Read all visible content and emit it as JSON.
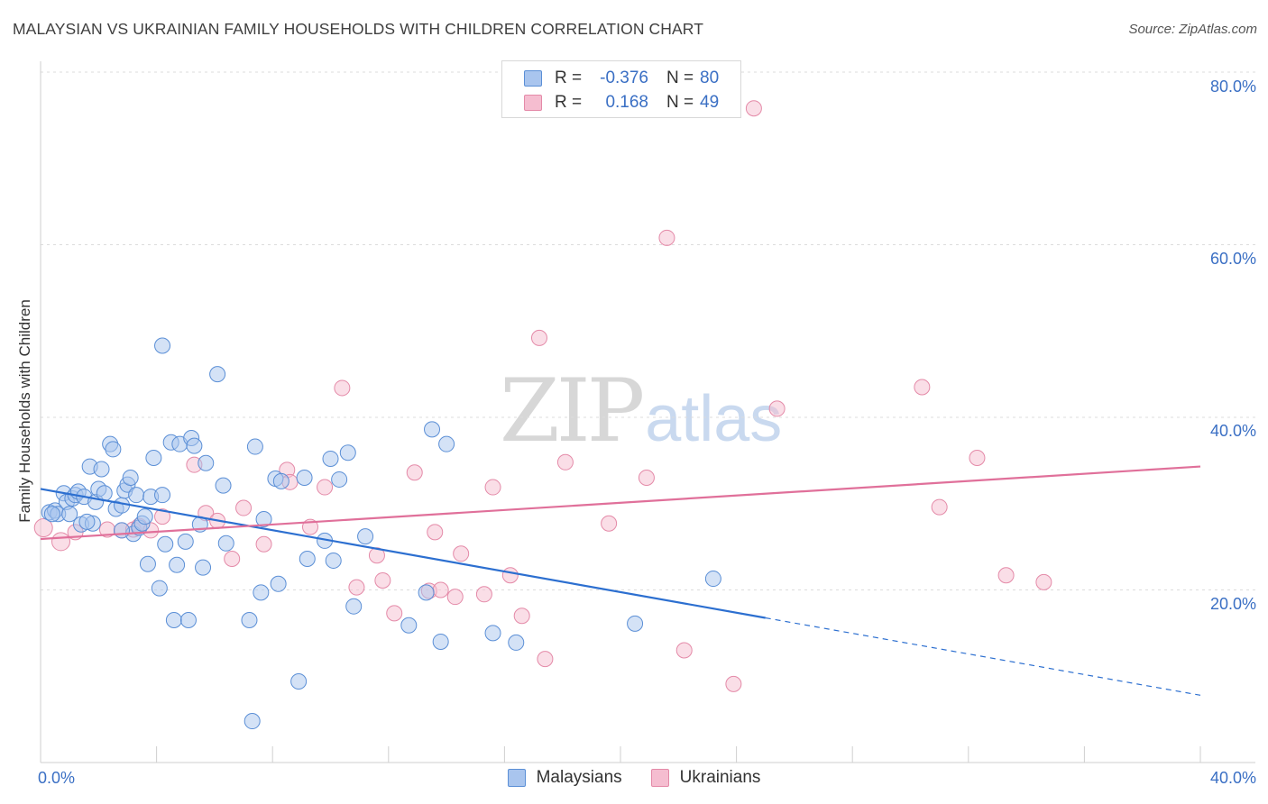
{
  "header": {
    "title": "MALAYSIAN VS UKRAINIAN FAMILY HOUSEHOLDS WITH CHILDREN CORRELATION CHART",
    "source": "Source: ZipAtlas.com"
  },
  "watermark": {
    "part1": "ZIP",
    "part2": "atlas"
  },
  "legend": {
    "rows": [
      {
        "r_label": "R =",
        "r_value": "-0.376",
        "n_label": "N =",
        "n_value": "80"
      },
      {
        "r_label": "R =",
        "r_value": "0.168",
        "n_label": "N =",
        "n_value": "49"
      }
    ]
  },
  "bottom_legend": {
    "series0": "Malaysians",
    "series1": "Ukrainians"
  },
  "axes": {
    "ylabel": "Family Households with Children",
    "x_min_label": "0.0%",
    "x_max_label": "40.0%",
    "y_ticks": [
      "80.0%",
      "60.0%",
      "40.0%",
      "20.0%"
    ]
  },
  "colors": {
    "blue_fill": "#a9c5ee",
    "blue_stroke": "#5b8fd6",
    "blue_line": "#2c6fd0",
    "pink_fill": "#f5bdd0",
    "pink_stroke": "#e48aa8",
    "pink_line": "#e0709a"
  },
  "chart_data": {
    "type": "scatter",
    "xlabel": "",
    "ylabel": "Family Households with Children",
    "xlim": [
      0,
      40
    ],
    "ylim": [
      0,
      80
    ],
    "grid": true,
    "series": [
      {
        "name": "Malaysians",
        "points": [
          [
            0.3,
            29.0
          ],
          [
            0.5,
            29.2
          ],
          [
            0.6,
            28.8
          ],
          [
            0.8,
            31.2
          ],
          [
            0.9,
            30.2
          ],
          [
            1.0,
            28.8
          ],
          [
            1.1,
            30.6
          ],
          [
            1.2,
            31.0
          ],
          [
            1.3,
            31.4
          ],
          [
            1.4,
            27.6
          ],
          [
            1.5,
            30.8
          ],
          [
            1.7,
            34.3
          ],
          [
            1.8,
            27.7
          ],
          [
            1.9,
            30.2
          ],
          [
            2.0,
            31.7
          ],
          [
            2.1,
            34.0
          ],
          [
            2.2,
            31.2
          ],
          [
            2.4,
            36.9
          ],
          [
            2.5,
            36.3
          ],
          [
            2.6,
            29.4
          ],
          [
            2.8,
            29.8
          ],
          [
            2.9,
            31.5
          ],
          [
            3.0,
            32.2
          ],
          [
            3.1,
            33.0
          ],
          [
            3.2,
            26.5
          ],
          [
            3.3,
            31.0
          ],
          [
            3.4,
            27.2
          ],
          [
            3.5,
            27.7
          ],
          [
            3.6,
            28.5
          ],
          [
            3.7,
            23.0
          ],
          [
            3.8,
            30.8
          ],
          [
            3.9,
            35.3
          ],
          [
            4.1,
            20.2
          ],
          [
            4.2,
            31.0
          ],
          [
            4.3,
            25.3
          ],
          [
            4.5,
            37.1
          ],
          [
            4.6,
            16.5
          ],
          [
            4.7,
            22.9
          ],
          [
            4.8,
            36.9
          ],
          [
            5.0,
            25.6
          ],
          [
            5.1,
            16.5
          ],
          [
            5.2,
            37.6
          ],
          [
            5.3,
            36.7
          ],
          [
            5.5,
            27.6
          ],
          [
            5.6,
            22.6
          ],
          [
            5.7,
            34.7
          ],
          [
            4.2,
            48.3
          ],
          [
            6.1,
            45.0
          ],
          [
            6.3,
            32.1
          ],
          [
            6.4,
            25.4
          ],
          [
            7.2,
            16.5
          ],
          [
            7.4,
            36.6
          ],
          [
            7.6,
            19.7
          ],
          [
            7.7,
            28.2
          ],
          [
            8.1,
            32.9
          ],
          [
            8.2,
            20.7
          ],
          [
            8.3,
            32.6
          ],
          [
            8.9,
            9.4
          ],
          [
            9.1,
            33.0
          ],
          [
            9.2,
            23.6
          ],
          [
            9.8,
            25.7
          ],
          [
            10.0,
            35.2
          ],
          [
            10.1,
            23.4
          ],
          [
            10.3,
            32.8
          ],
          [
            10.6,
            35.9
          ],
          [
            10.8,
            18.1
          ],
          [
            11.2,
            26.2
          ],
          [
            7.3,
            4.8
          ],
          [
            12.7,
            15.9
          ],
          [
            13.3,
            19.7
          ],
          [
            13.5,
            38.6
          ],
          [
            14.0,
            36.9
          ],
          [
            13.8,
            14.0
          ],
          [
            15.6,
            15.0
          ],
          [
            16.4,
            13.9
          ],
          [
            20.5,
            16.1
          ],
          [
            23.2,
            21.3
          ],
          [
            2.8,
            26.9
          ],
          [
            0.4,
            28.8
          ],
          [
            1.6,
            27.9
          ]
        ]
      },
      {
        "name": "Ukrainians",
        "points": [
          [
            0.1,
            27.2
          ],
          [
            0.7,
            25.6
          ],
          [
            1.2,
            26.7
          ],
          [
            2.3,
            27.0
          ],
          [
            2.8,
            26.9
          ],
          [
            3.2,
            27.0
          ],
          [
            3.4,
            27.4
          ],
          [
            3.8,
            26.9
          ],
          [
            4.2,
            28.5
          ],
          [
            5.3,
            34.5
          ],
          [
            5.7,
            28.9
          ],
          [
            6.1,
            28.0
          ],
          [
            6.6,
            23.6
          ],
          [
            7.0,
            29.5
          ],
          [
            7.7,
            25.3
          ],
          [
            8.5,
            33.9
          ],
          [
            8.6,
            32.5
          ],
          [
            9.3,
            27.3
          ],
          [
            9.8,
            31.9
          ],
          [
            10.4,
            43.4
          ],
          [
            10.9,
            20.3
          ],
          [
            11.6,
            24.0
          ],
          [
            11.8,
            21.1
          ],
          [
            12.2,
            17.3
          ],
          [
            12.9,
            33.6
          ],
          [
            13.4,
            19.9
          ],
          [
            13.6,
            26.7
          ],
          [
            13.8,
            20.0
          ],
          [
            14.3,
            19.2
          ],
          [
            14.5,
            24.2
          ],
          [
            15.3,
            19.5
          ],
          [
            15.6,
            31.9
          ],
          [
            16.2,
            21.7
          ],
          [
            16.6,
            17.0
          ],
          [
            17.2,
            49.2
          ],
          [
            17.4,
            12.0
          ],
          [
            18.1,
            34.8
          ],
          [
            19.6,
            27.7
          ],
          [
            20.9,
            33.0
          ],
          [
            21.6,
            60.8
          ],
          [
            22.2,
            13.0
          ],
          [
            23.9,
            9.1
          ],
          [
            24.6,
            75.8
          ],
          [
            25.4,
            41.0
          ],
          [
            30.4,
            43.5
          ],
          [
            31.0,
            29.6
          ],
          [
            32.3,
            35.3
          ],
          [
            33.3,
            21.7
          ],
          [
            34.6,
            20.9
          ]
        ]
      }
    ],
    "trendlines": [
      {
        "series": "Malaysians",
        "x_start": 0,
        "y_start": 31.7,
        "x_solid_end": 25.0,
        "x_end": 40,
        "y_end": 7.8
      },
      {
        "series": "Ukrainians",
        "x_start": 0,
        "y_start": 25.9,
        "x_end": 40,
        "y_end": 34.3
      }
    ]
  }
}
